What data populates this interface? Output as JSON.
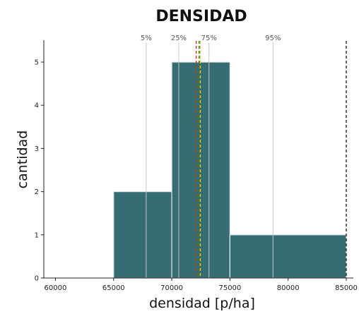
{
  "chart_data": {
    "type": "bar",
    "title": "DENSIDAD",
    "xlabel": "densidad [p/ha]",
    "ylabel": "cantidad",
    "xlim": [
      59000,
      85000
    ],
    "ylim": [
      0,
      5.5
    ],
    "x_ticks": [
      "60000",
      "65000",
      "70000",
      "75000",
      "80000",
      "85000"
    ],
    "y_ticks": [
      "0",
      "1",
      "2",
      "3",
      "4",
      "5"
    ],
    "bins": [
      {
        "from": 65000,
        "to": 70000,
        "count": 2
      },
      {
        "from": 70000,
        "to": 75000,
        "count": 5
      },
      {
        "from": 75000,
        "to": 85000,
        "count": 1
      }
    ],
    "percentiles": [
      {
        "label": "5%",
        "value": 67800
      },
      {
        "label": "25%",
        "value": 70600
      },
      {
        "label": "75%",
        "value": 73200
      },
      {
        "label": "95%",
        "value": 78700
      }
    ],
    "reference_lines": [
      {
        "value": 72100,
        "color": "#c0392b",
        "style": "dashed"
      },
      {
        "value": 72350,
        "color": "#2e7d32",
        "style": "dashed"
      },
      {
        "value": 72450,
        "color": "#f1c40f",
        "style": "dashed"
      },
      {
        "value": 85000,
        "color": "#333333",
        "style": "dashed"
      }
    ],
    "colors": {
      "bar_fill": "#366d73",
      "bar_edge": "#e5e5e5",
      "percentile_line": "#c8c8c8",
      "axis": "#222222"
    },
    "grid": false,
    "legend": "none"
  }
}
